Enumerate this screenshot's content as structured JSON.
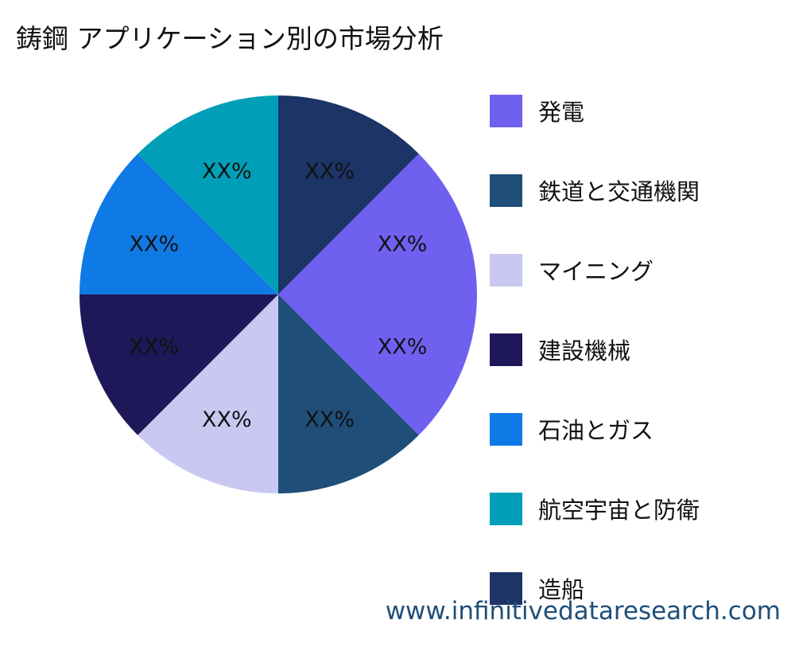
{
  "chart_data": {
    "type": "pie",
    "title": "鋳鋼 アプリケーション別の市場分析",
    "legend_position": "right",
    "slices": [
      {
        "name": "発電",
        "value": 25,
        "label": "XX%",
        "color": "#7060f0"
      },
      {
        "name": "鉄道と交通機関",
        "value": 12.5,
        "label": "XX%",
        "color": "#1f4e79"
      },
      {
        "name": "マイニング",
        "value": 12.5,
        "label": "XX%",
        "color": "#c8c8f0"
      },
      {
        "name": "建設機械",
        "value": 12.5,
        "label": "XX%",
        "color": "#1e1858"
      },
      {
        "name": "石油とガス",
        "value": 12.5,
        "label": "XX%",
        "color": "#0f7ae5"
      },
      {
        "name": "航空宇宙と防衛",
        "value": 12.5,
        "label": "XX%",
        "color": "#009fb7"
      },
      {
        "name": "造船",
        "value": 12.5,
        "label": "XX%",
        "color": "#1c3466"
      }
    ]
  },
  "watermark": "www.infinitivedataresearch.com"
}
